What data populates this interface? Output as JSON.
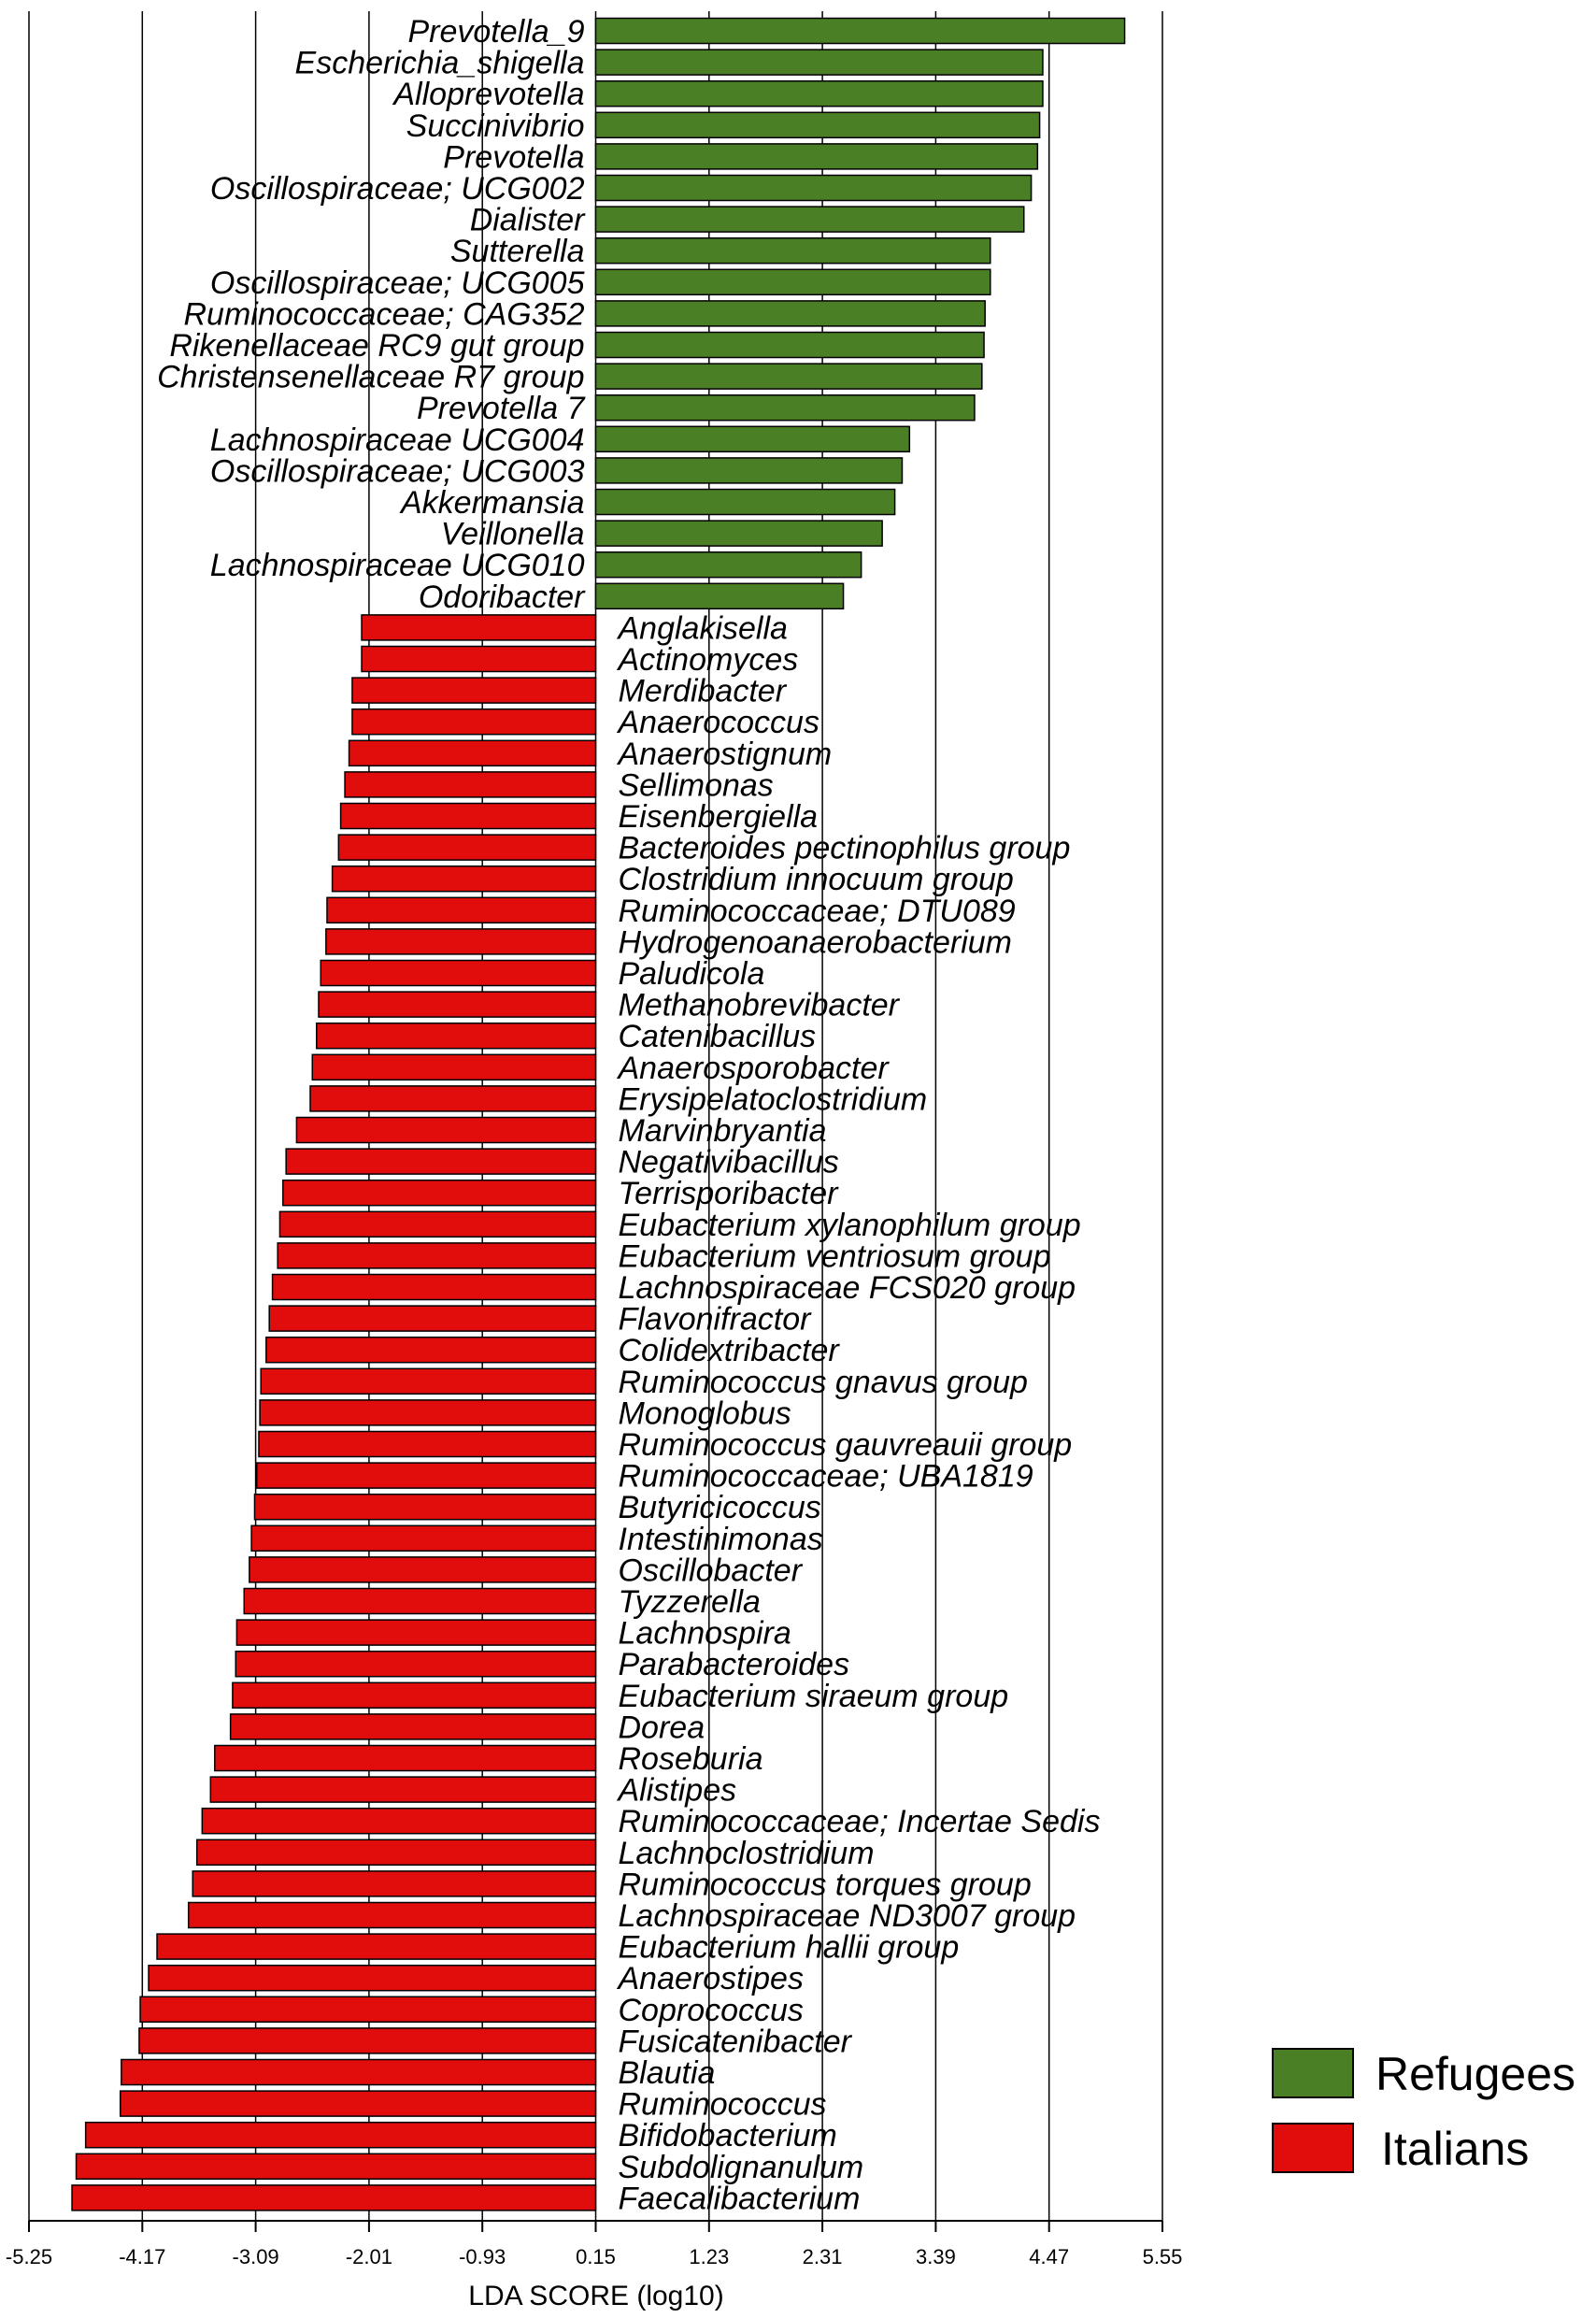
{
  "chart_data": {
    "type": "bar",
    "orientation": "horizontal",
    "xlabel": "LDA SCORE (log10)",
    "xticks": [
      -5.25,
      -4.17,
      -3.09,
      -2.01,
      -0.93,
      0.15,
      1.23,
      2.31,
      3.39,
      4.47,
      5.55
    ],
    "xtick_labels": [
      "-5.25",
      "-4.17",
      "-3.09",
      "-2.01",
      "-0.93",
      "0.15",
      "1.23",
      "2.31",
      "3.39",
      "4.47",
      "5.55"
    ],
    "xlim": [
      -5.25,
      5.55
    ],
    "grid": true,
    "legend_position": "bottom-right",
    "series": [
      {
        "name": "Refugees",
        "color": "#4a7f26",
        "categories": [
          "Prevotella_9",
          "Escherichia_shigella",
          "Alloprevotella",
          "Succinivibrio",
          "Prevotella",
          "Oscillospiraceae; UCG002",
          "Dialister",
          "Sutterella",
          "Oscillospiraceae; UCG005",
          "Ruminococcaceae; CAG352",
          "Rikenellaceae RC9 gut group",
          "Christensenellaceae R7 group",
          "Prevotella 7",
          "Lachnospiraceae UCG004",
          "Oscillospiraceae; UCG003",
          "Akkermansia",
          "Veillonella",
          "Lachnospiraceae UCG010",
          "Odoribacter"
        ],
        "values": [
          5.19,
          4.41,
          4.41,
          4.38,
          4.36,
          4.3,
          4.23,
          3.91,
          3.91,
          3.86,
          3.85,
          3.83,
          3.76,
          3.14,
          3.07,
          3.0,
          2.88,
          2.68,
          2.51
        ]
      },
      {
        "name": "Italians",
        "color": "#e10d0d",
        "categories": [
          "Anglakisella",
          "Actinomyces",
          "Merdibacter",
          "Anaerococcus",
          "Anaerostignum",
          "Sellimonas",
          "Eisenbergiella",
          "Bacteroides pectinophilus group",
          "Clostridium innocuum group",
          "Ruminococcaceae; DTU089",
          "Hydrogenoanaerobacterium",
          "Paludicola",
          "Methanobrevibacter",
          "Catenibacillus",
          "Anaerosporobacter",
          "Erysipelatoclostridium",
          "Marvinbryantia",
          "Negativibacillus",
          "Terrisporibacter",
          "Eubacterium xylanophilum group",
          "Eubacterium ventriosum group",
          "Lachnospiraceae FCS020 group",
          "Flavonifractor",
          "Colidextribacter",
          "Ruminococcus gnavus group",
          "Monoglobus",
          "Ruminococcus gauvreauii group",
          "Ruminococcaceae; UBA1819",
          "Butyricicoccus",
          "Intestinimonas",
          "Oscillobacter",
          "Tyzzerella",
          "Lachnospira",
          "Parabacteroides",
          "Eubacterium siraeum group",
          "Dorea",
          "Roseburia",
          "Alistipes",
          "Ruminococcaceae; Incertae Sedis",
          "Lachnoclostridium",
          "Ruminococcus torques group",
          "Lachnospiraceae ND3007 group",
          "Eubacterium hallii group",
          "Anaerostipes",
          "Coprococcus",
          "Fusicatenibacter",
          "Blautia",
          "Ruminococcus",
          "Bifidobacterium",
          "Subdolignanulum",
          "Faecalibacterium"
        ],
        "values": [
          -2.08,
          -2.08,
          -2.17,
          -2.17,
          -2.2,
          -2.24,
          -2.28,
          -2.3,
          -2.36,
          -2.41,
          -2.42,
          -2.47,
          -2.49,
          -2.51,
          -2.55,
          -2.57,
          -2.7,
          -2.8,
          -2.83,
          -2.86,
          -2.88,
          -2.93,
          -2.96,
          -2.99,
          -3.04,
          -3.05,
          -3.06,
          -3.08,
          -3.1,
          -3.13,
          -3.15,
          -3.2,
          -3.27,
          -3.28,
          -3.31,
          -3.33,
          -3.48,
          -3.52,
          -3.6,
          -3.65,
          -3.69,
          -3.73,
          -4.03,
          -4.11,
          -4.19,
          -4.2,
          -4.37,
          -4.38,
          -4.71,
          -4.8,
          -4.84
        ]
      }
    ]
  }
}
